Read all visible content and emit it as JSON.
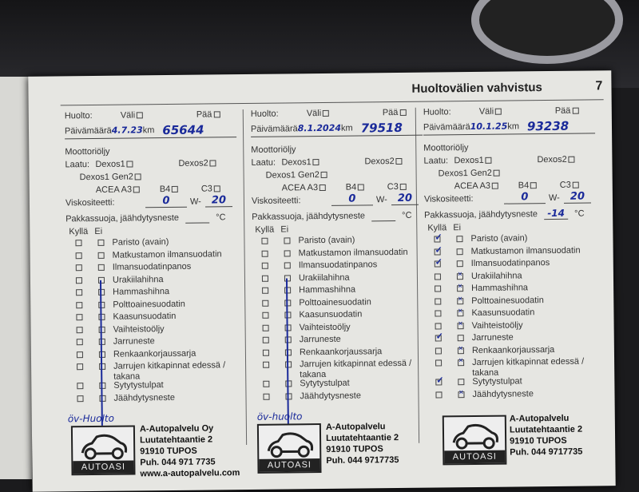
{
  "header": {
    "title": "Huoltovälien vahvistus",
    "page": "7"
  },
  "labels": {
    "huolto": "Huolto:",
    "vali": "Väli",
    "paa": "Pää",
    "paivamaara": "Päivämäärä",
    "km": "km",
    "moottoriolja": "Moottoriöljy",
    "laatu": "Laatu:",
    "dexos1": "Dexos1",
    "dexos2": "Dexos2",
    "dexos1gen2": "Dexos1 Gen2",
    "acea": "ACEA A3",
    "b4": "B4",
    "c3": "C3",
    "viskositeetti": "Viskositeetti:",
    "w": "W-",
    "pakkassuoja": "Pakkassuoja, jäähdytysneste",
    "celsius": "°C",
    "kylla": "Kyllä",
    "ei": "Ei"
  },
  "items": [
    "Paristo (avain)",
    "Matkustamon ilmansuodatin",
    "Ilmansuodatinpanos",
    "Urakiilahihna",
    "Hammashihna",
    "Polttoainesuodatin",
    "Kaasunsuodatin",
    "Vaihteistoöljy",
    "Jarruneste",
    "Renkaankorjaussarja",
    "Jarrujen kitkapinnat edessä / takana",
    "Sytytystulpat",
    "Jäähdytysneste"
  ],
  "entries": [
    {
      "date": "4.7.23",
      "km": "65644",
      "visc_cold": "0",
      "visc_hot": "20",
      "antifreeze": "",
      "kylla": [],
      "ei_line": true,
      "note": "öv-Huolto",
      "stamp": {
        "name": "A-Autopalvelu Oy",
        "street": "Luutatehtaantie 2",
        "city": "91910 TUPOS",
        "phone": "Puh. 044 971 7735",
        "web": "www.a-autopalvelu.com",
        "logo": "AUTOASI"
      }
    },
    {
      "date": "8.1.2024",
      "km": "79518",
      "visc_cold": "0",
      "visc_hot": "20",
      "antifreeze": "",
      "kylla": [],
      "ei_line": true,
      "note": "öv-huolto",
      "stamp": {
        "name": "A-Autopalvelu",
        "street": "Luutatehtaantie 2",
        "city": "91910 TUPOS",
        "phone": "Puh. 044 9717735",
        "logo": "AUTOASI"
      }
    },
    {
      "date": "10.1.25",
      "km": "93238",
      "visc_cold": "0",
      "visc_hot": "20",
      "antifreeze": "-14",
      "kylla": [
        0,
        1,
        2,
        8,
        11
      ],
      "ei_line": false,
      "note": "",
      "stamp": {
        "name": "A-Autopalvelu",
        "street": "Luutatehtaantie 2",
        "city": "91910 TUPOS",
        "phone": "Puh. 044 9717735",
        "logo": "AUTOASI"
      }
    }
  ]
}
